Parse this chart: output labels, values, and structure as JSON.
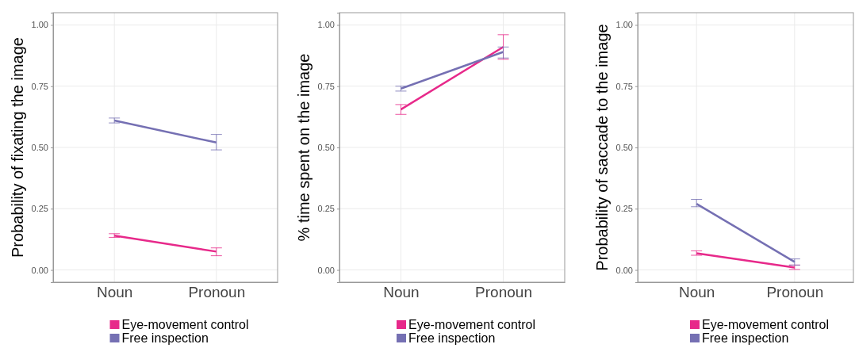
{
  "chart_data": [
    {
      "type": "line",
      "ylabel": "Probability of fixating the image",
      "categories": [
        "Noun",
        "Pronoun"
      ],
      "ylim": [
        -0.05,
        1.05
      ],
      "yticks": [
        {
          "value": 0,
          "label": "0.00"
        },
        {
          "value": 0.25,
          "label": "0.25"
        },
        {
          "value": 0.5,
          "label": "0.50"
        },
        {
          "value": 0.75,
          "label": "0.75"
        },
        {
          "value": 1,
          "label": "1.00"
        }
      ],
      "grid": true,
      "legend": "bottom",
      "series": [
        {
          "name": "Eye-movement control",
          "color": "#e7298a",
          "values": [
            0.14,
            0.075
          ],
          "errors": [
            [
              0.133,
              0.148
            ],
            [
              0.058,
              0.09
            ]
          ]
        },
        {
          "name": "Free inspection",
          "color": "#7570b3",
          "values": [
            0.61,
            0.52
          ],
          "errors": [
            [
              0.6,
              0.62
            ],
            [
              0.49,
              0.553
            ]
          ]
        }
      ]
    },
    {
      "type": "line",
      "ylabel": "% time spent on the image",
      "categories": [
        "Noun",
        "Pronoun"
      ],
      "ylim": [
        -0.05,
        1.05
      ],
      "yticks": [
        {
          "value": 0,
          "label": "0.00"
        },
        {
          "value": 0.25,
          "label": "0.25"
        },
        {
          "value": 0.5,
          "label": "0.50"
        },
        {
          "value": 0.75,
          "label": "0.75"
        },
        {
          "value": 1,
          "label": "1.00"
        }
      ],
      "grid": true,
      "legend": "bottom",
      "series": [
        {
          "name": "Eye-movement control",
          "color": "#e7298a",
          "values": [
            0.655,
            0.91
          ],
          "errors": [
            [
              0.635,
              0.675
            ],
            [
              0.86,
              0.96
            ]
          ]
        },
        {
          "name": "Free inspection",
          "color": "#7570b3",
          "values": [
            0.74,
            0.89
          ],
          "errors": [
            [
              0.73,
              0.75
            ],
            [
              0.865,
              0.91
            ]
          ]
        }
      ]
    },
    {
      "type": "line",
      "ylabel": "Probability of saccade to the image",
      "categories": [
        "Noun",
        "Pronoun"
      ],
      "ylim": [
        -0.05,
        1.05
      ],
      "yticks": [
        {
          "value": 0,
          "label": "0.00"
        },
        {
          "value": 0.25,
          "label": "0.25"
        },
        {
          "value": 0.5,
          "label": "0.50"
        },
        {
          "value": 0.75,
          "label": "0.75"
        },
        {
          "value": 1,
          "label": "1.00"
        }
      ],
      "grid": true,
      "legend": "bottom",
      "series": [
        {
          "name": "Eye-movement control",
          "color": "#e7298a",
          "values": [
            0.068,
            0.01
          ],
          "errors": [
            [
              0.06,
              0.078
            ],
            [
              0.002,
              0.02
            ]
          ]
        },
        {
          "name": "Free inspection",
          "color": "#7570b3",
          "values": [
            0.27,
            0.033
          ],
          "errors": [
            [
              0.258,
              0.288
            ],
            [
              0.02,
              0.045
            ]
          ]
        }
      ]
    }
  ]
}
